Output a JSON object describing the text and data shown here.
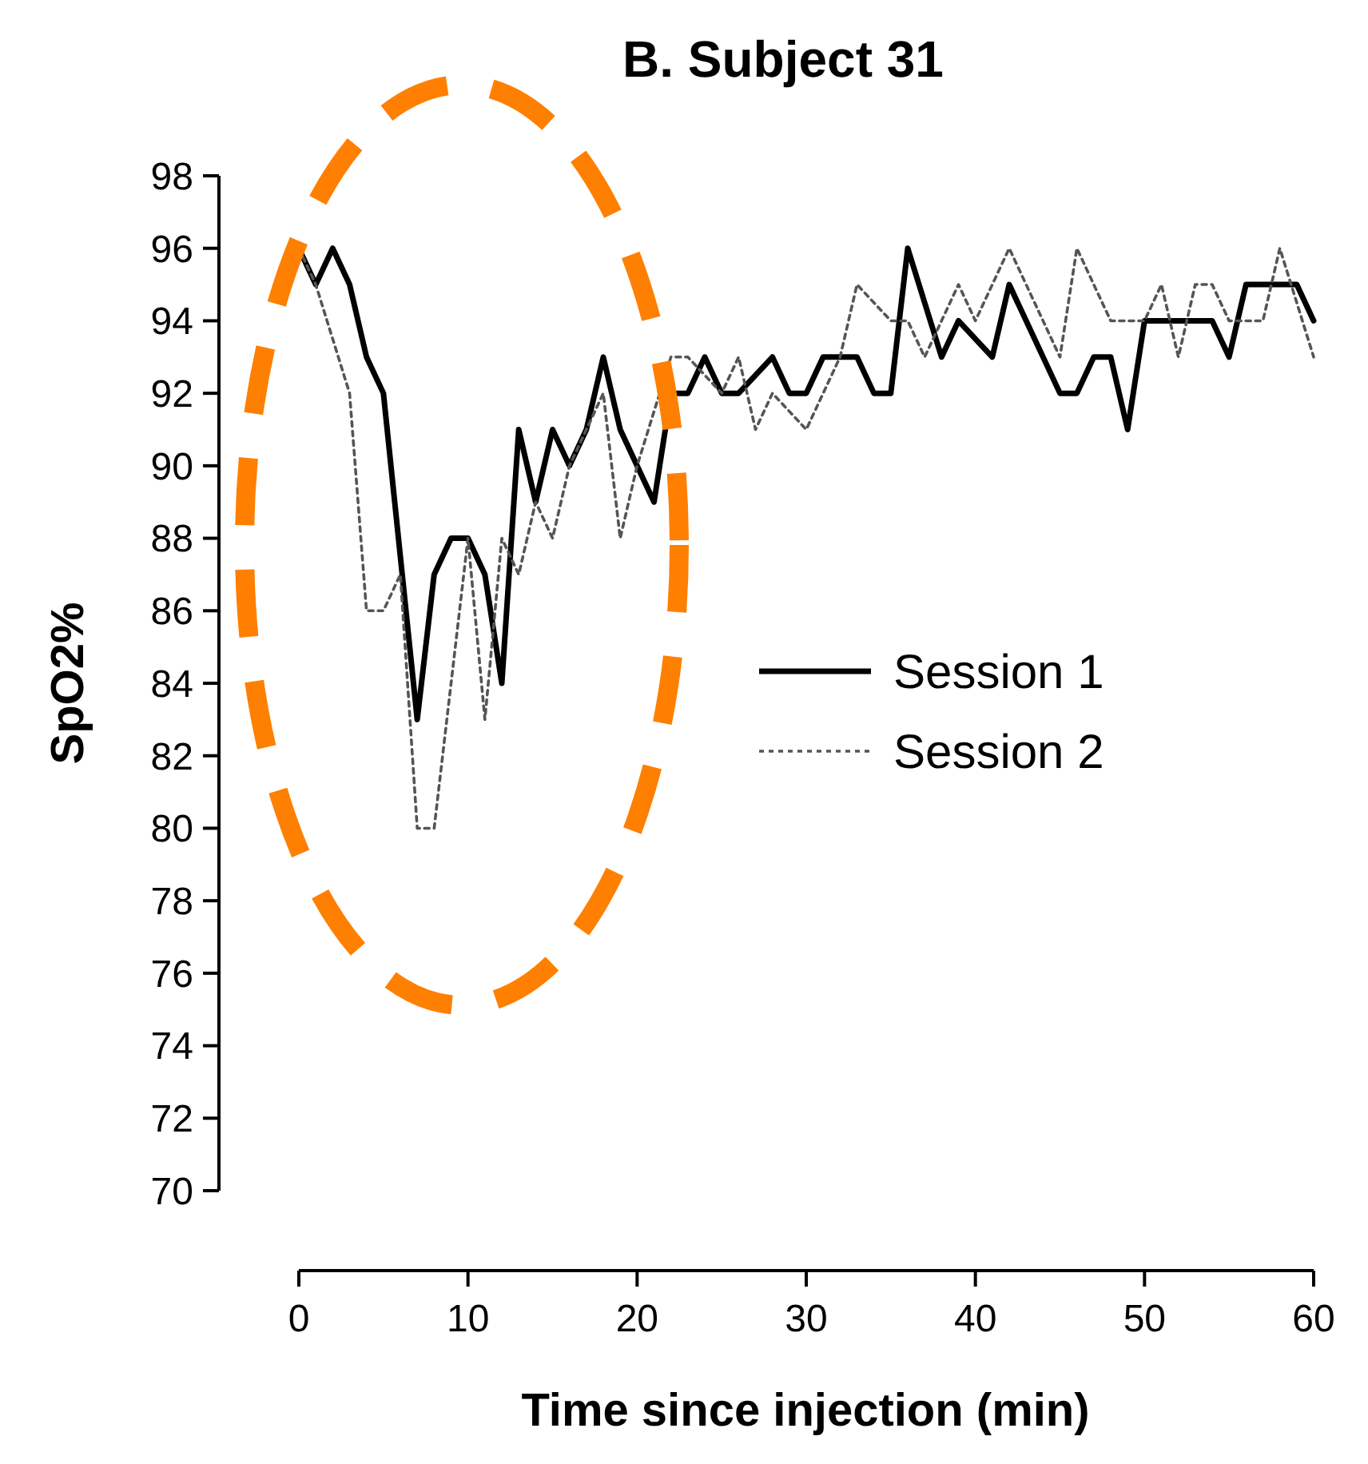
{
  "chart_data": {
    "type": "line",
    "title": "B. Subject 31",
    "xlabel": "Time since injection (min)",
    "ylabel": "SpO2%",
    "xlim": [
      0,
      60
    ],
    "xticks": [
      0,
      10,
      20,
      30,
      40,
      50,
      60
    ],
    "ylim": [
      70,
      98
    ],
    "yticks": [
      70,
      72,
      74,
      76,
      78,
      80,
      82,
      84,
      86,
      88,
      90,
      92,
      94,
      96,
      98
    ],
    "legend": "right",
    "grid": false,
    "marker": "none",
    "series": [
      {
        "name": "Session 1",
        "color": "#000000",
        "line_style": "solid",
        "x": [
          0,
          1,
          2,
          3,
          4,
          5,
          7,
          8,
          9,
          10,
          11,
          12,
          13,
          14,
          15,
          16,
          17,
          18,
          19,
          21,
          22,
          23,
          24,
          25,
          26,
          28,
          29,
          30,
          31,
          33,
          34,
          35,
          36,
          38,
          39,
          41,
          42,
          45,
          46,
          47,
          48,
          49,
          50,
          54,
          55,
          56,
          59,
          60
        ],
        "values": [
          96,
          95,
          96,
          95,
          93,
          92,
          83,
          87,
          88,
          88,
          87,
          84,
          91,
          89,
          91,
          90,
          91,
          93,
          91,
          89,
          92,
          92,
          93,
          92,
          92,
          93,
          92,
          92,
          93,
          93,
          92,
          92,
          96,
          93,
          94,
          93,
          95,
          92,
          92,
          93,
          93,
          91,
          94,
          94,
          93,
          95,
          95,
          94
        ]
      },
      {
        "name": "Session 2",
        "color": "#555555",
        "line_style": "dotted",
        "x": [
          0,
          1,
          3,
          4,
          5,
          6,
          7,
          8,
          10,
          11,
          12,
          13,
          14,
          15,
          16,
          18,
          19,
          20,
          22,
          23,
          25,
          26,
          27,
          28,
          30,
          32,
          33,
          35,
          36,
          37,
          39,
          40,
          42,
          45,
          46,
          48,
          50,
          51,
          52,
          53,
          54,
          55,
          57,
          58,
          60
        ],
        "values": [
          96,
          95,
          92,
          86,
          86,
          87,
          80,
          80,
          88,
          83,
          88,
          87,
          89,
          88,
          90,
          92,
          88,
          90,
          93,
          93,
          92,
          93,
          91,
          92,
          91,
          93,
          95,
          94,
          94,
          93,
          95,
          94,
          96,
          93,
          96,
          94,
          94,
          95,
          93,
          95,
          95,
          94,
          94,
          96,
          93
        ]
      }
    ]
  }
}
